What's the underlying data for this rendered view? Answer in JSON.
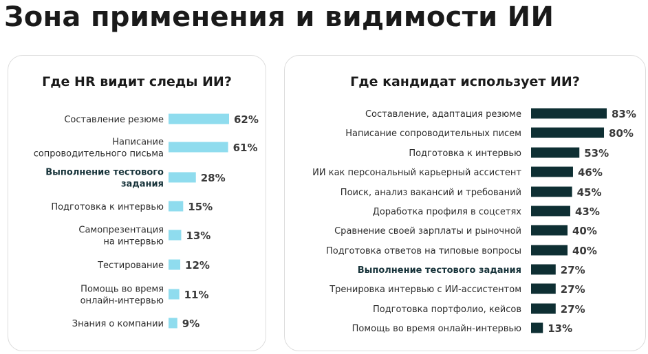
{
  "page": {
    "title": "Зона применения и видимости ИИ"
  },
  "colors": {
    "hr_bar": "#8fdcee",
    "candidate_bar": "#0e2f33",
    "highlight_text": "#17333a"
  },
  "chart_data": [
    {
      "type": "bar",
      "orientation": "horizontal",
      "title": "Где HR видит следы ИИ?",
      "unit": "%",
      "xlim": [
        0,
        62
      ],
      "grid": false,
      "categories": [
        [
          "Составление резюме"
        ],
        [
          "Написание",
          "сопроводительного письма"
        ],
        [
          "Выполнение тестового",
          "задания"
        ],
        [
          "Подготовка к интервью"
        ],
        [
          "Самопрезентация",
          "на интервью"
        ],
        [
          "Тестирование"
        ],
        [
          "Помощь во время",
          "онлайн-интервью"
        ],
        [
          "Знания о компании"
        ]
      ],
      "values": [
        62,
        61,
        28,
        15,
        13,
        12,
        11,
        9
      ],
      "value_labels": [
        "62%",
        "61%",
        "28%",
        "15%",
        "13%",
        "12%",
        "11%",
        "9%"
      ],
      "highlighted": [
        2
      ]
    },
    {
      "type": "bar",
      "orientation": "horizontal",
      "title": "Где кандидат использует ИИ?",
      "unit": "%",
      "xlim": [
        0,
        83
      ],
      "grid": false,
      "categories": [
        [
          "Составление, адаптация резюме"
        ],
        [
          "Написание сопроводительных писем"
        ],
        [
          "Подготовка к интервью"
        ],
        [
          "ИИ как персональный карьерный ассистент"
        ],
        [
          "Поиск, анализ вакансий и требований"
        ],
        [
          "Доработка профиля в соцсетях"
        ],
        [
          "Сравнение своей зарплаты и рыночной"
        ],
        [
          "Подготовка ответов на типовые вопросы"
        ],
        [
          "Выполнение тестового задания"
        ],
        [
          "Тренировка интервью с ИИ-ассистентом"
        ],
        [
          "Подготовка портфолио, кейсов"
        ],
        [
          "Помощь во время онлайн-интервью"
        ]
      ],
      "values": [
        83,
        80,
        53,
        46,
        45,
        43,
        40,
        40,
        27,
        27,
        27,
        13
      ],
      "value_labels": [
        "83%",
        "80%",
        "53%",
        "46%",
        "45%",
        "43%",
        "40%",
        "40%",
        "27%",
        "27%",
        "27%",
        "13%"
      ],
      "highlighted": [
        8
      ]
    }
  ]
}
